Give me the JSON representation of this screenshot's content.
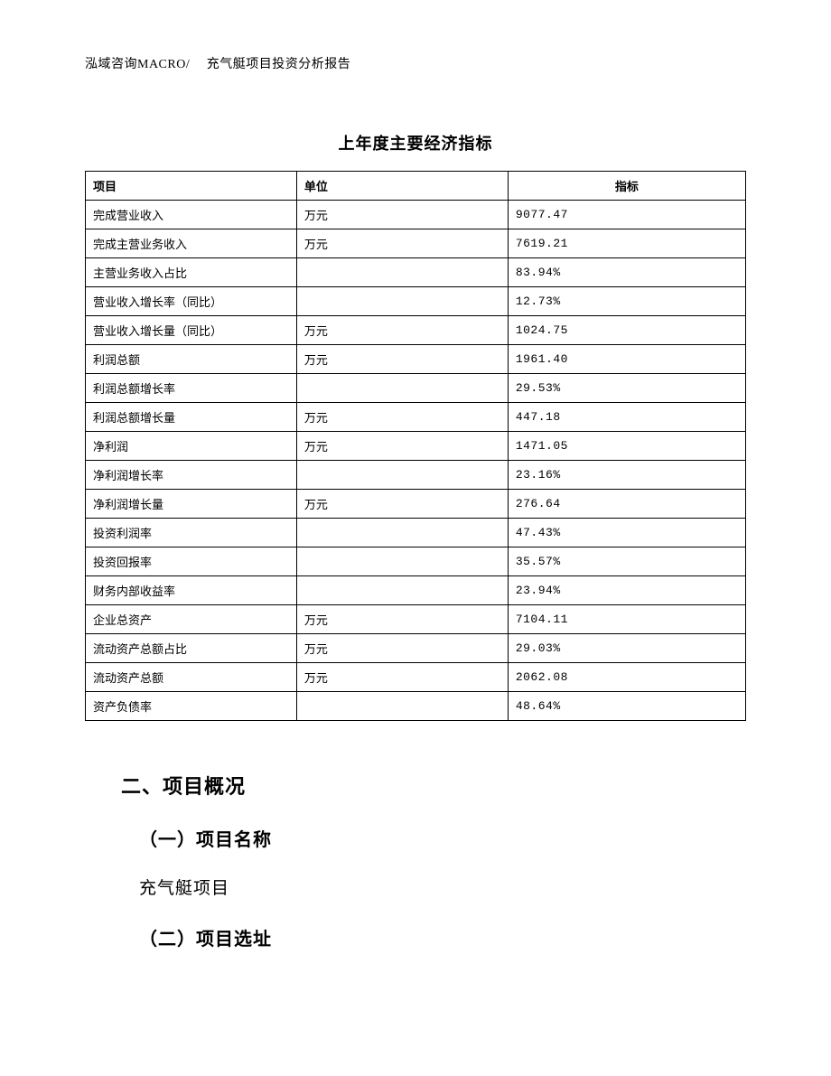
{
  "header": "泓域咨询MACRO/　 充气艇项目投资分析报告",
  "table": {
    "title": "上年度主要经济指标",
    "columns": [
      "项目",
      "单位",
      "指标"
    ],
    "rows": [
      {
        "project": "完成营业收入",
        "unit": "万元",
        "indicator": "9077.47"
      },
      {
        "project": "完成主营业务收入",
        "unit": "万元",
        "indicator": "7619.21"
      },
      {
        "project": "主营业务收入占比",
        "unit": "",
        "indicator": "83.94%"
      },
      {
        "project": "营业收入增长率（同比）",
        "unit": "",
        "indicator": "12.73%"
      },
      {
        "project": "营业收入增长量（同比）",
        "unit": "万元",
        "indicator": "1024.75"
      },
      {
        "project": "利润总额",
        "unit": "万元",
        "indicator": "1961.40"
      },
      {
        "project": "利润总额增长率",
        "unit": "",
        "indicator": "29.53%"
      },
      {
        "project": "利润总额增长量",
        "unit": "万元",
        "indicator": "447.18"
      },
      {
        "project": "净利润",
        "unit": "万元",
        "indicator": "1471.05"
      },
      {
        "project": "净利润增长率",
        "unit": "",
        "indicator": "23.16%"
      },
      {
        "project": "净利润增长量",
        "unit": "万元",
        "indicator": "276.64"
      },
      {
        "project": "投资利润率",
        "unit": "",
        "indicator": "47.43%"
      },
      {
        "project": "投资回报率",
        "unit": "",
        "indicator": "35.57%"
      },
      {
        "project": "财务内部收益率",
        "unit": "",
        "indicator": "23.94%"
      },
      {
        "project": "企业总资产",
        "unit": "万元",
        "indicator": "7104.11"
      },
      {
        "project": "流动资产总额占比",
        "unit": "万元",
        "indicator": "29.03%"
      },
      {
        "project": "流动资产总额",
        "unit": "万元",
        "indicator": "2062.08"
      },
      {
        "project": "资产负债率",
        "unit": "",
        "indicator": "48.64%"
      }
    ]
  },
  "sections": {
    "heading2": "二、项目概况",
    "sub1": "（一）项目名称",
    "body1": "充气艇项目",
    "sub2": "（二）项目选址"
  }
}
